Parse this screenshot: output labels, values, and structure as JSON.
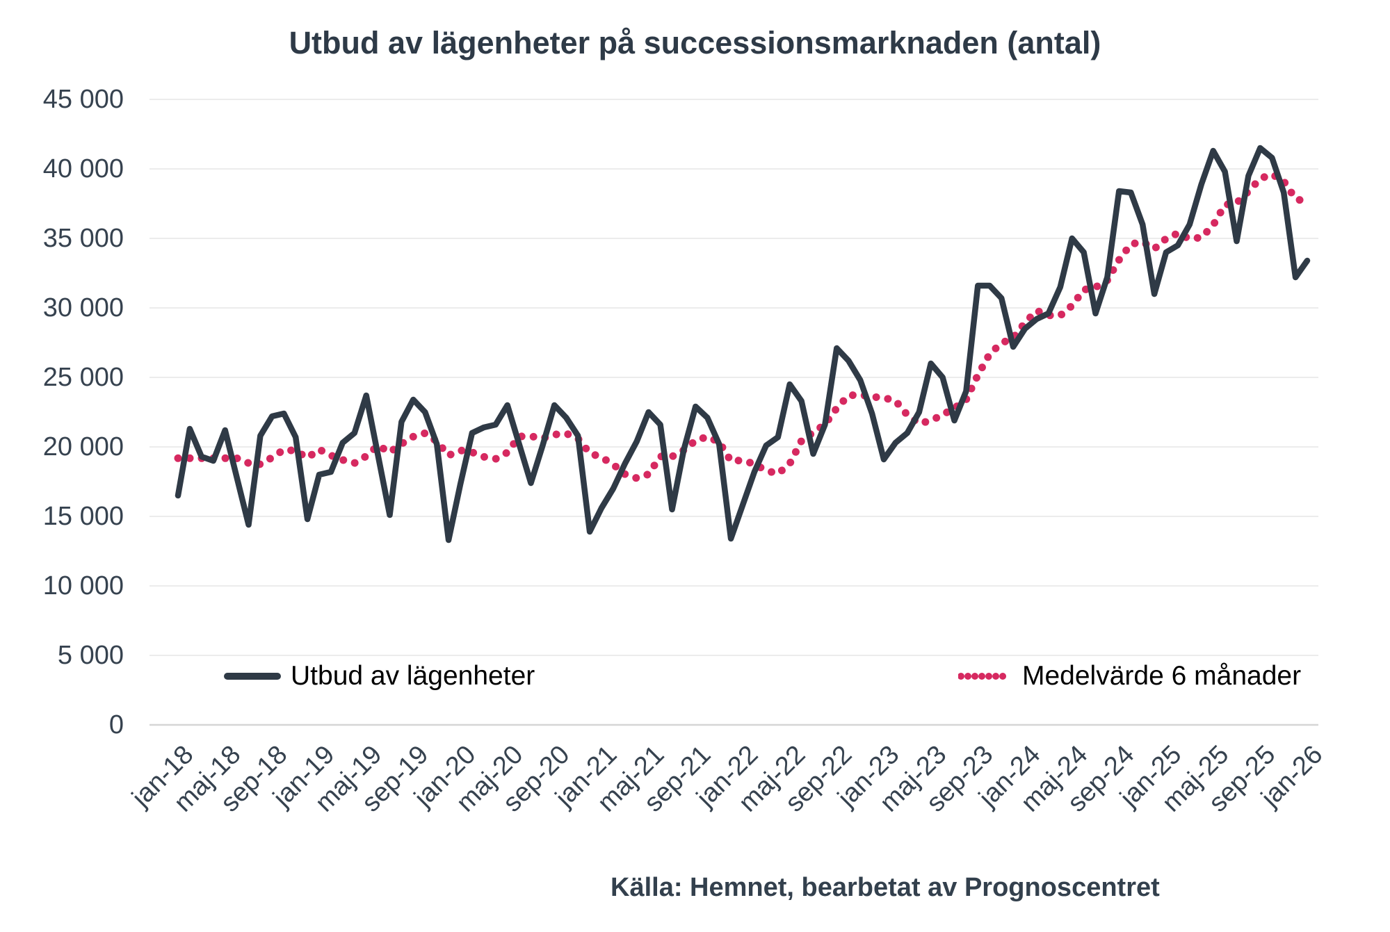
{
  "title": "Utbud av lägenheter på successionsmarknaden (antal)",
  "source": "Källa: Hemnet, bearbetat av Prognoscentret",
  "colors": {
    "main_line": "#2f3a46",
    "moving_average": "#d62960",
    "gridline": "#ececec",
    "axis_line": "#d5d5d5",
    "text": "#36424f",
    "title_text": "#2e3a47"
  },
  "chart_data": {
    "type": "line",
    "title": "Utbud av lägenheter på successionsmarknaden (antal)",
    "xlabel": "",
    "ylabel": "",
    "ylim": [
      0,
      45000
    ],
    "ytick_step": 5000,
    "y_tick_labels": [
      "0",
      "5 000",
      "10 000",
      "15 000",
      "20 000",
      "25 000",
      "30 000",
      "35 000",
      "40 000",
      "45 000"
    ],
    "x_tick_labels": [
      "jan-18",
      "maj-18",
      "sep-18",
      "jan-19",
      "maj-19",
      "sep-19",
      "jan-20",
      "maj-20",
      "sep-20",
      "jan-21",
      "maj-21",
      "sep-21",
      "jan-22",
      "maj-22",
      "sep-22",
      "jan-23",
      "maj-23",
      "sep-23",
      "jan-24",
      "maj-24",
      "sep-24",
      "jan-25",
      "maj-25",
      "sep-25",
      "jan-26"
    ],
    "x_tick_every_n_points": 4,
    "grid": "horizontal",
    "legend_position": "bottom-inside",
    "series": [
      {
        "name": "Utbud av lägenheter",
        "style": "solid",
        "color": "#2f3a46",
        "start_month": "jan-18",
        "end_month": "jan-26",
        "values": [
          16500,
          21300,
          19300,
          19000,
          21200,
          17800,
          14400,
          20800,
          22200,
          22400,
          20700,
          14800,
          18000,
          18200,
          20300,
          21000,
          23700,
          19400,
          15100,
          21800,
          23400,
          22500,
          20200,
          13300,
          17300,
          21000,
          21400,
          21600,
          23000,
          20200,
          17400,
          20100,
          23000,
          22100,
          20800,
          13900,
          15600,
          17000,
          18800,
          20400,
          22500,
          21600,
          15500,
          19800,
          22900,
          22100,
          20200,
          13400,
          15800,
          18200,
          20100,
          20700,
          24500,
          23300,
          19500,
          21600,
          27100,
          26200,
          24800,
          22400,
          19100,
          20300,
          21000,
          22500,
          26000,
          25000,
          21900,
          24000,
          31600,
          31600,
          30700,
          27200,
          28500,
          29200,
          29600,
          31500,
          35000,
          34000,
          29600,
          32200,
          38400,
          38300,
          36000,
          31000,
          34000,
          34500,
          36000,
          38900,
          41300,
          39800,
          34800,
          39500,
          41500,
          40800,
          38300,
          32200,
          33400
        ]
      },
      {
        "name": "Medelvärde 6 månader",
        "style": "dotted",
        "color": "#d62960",
        "derived": "trailing mean of 6 months of first series"
      }
    ]
  }
}
